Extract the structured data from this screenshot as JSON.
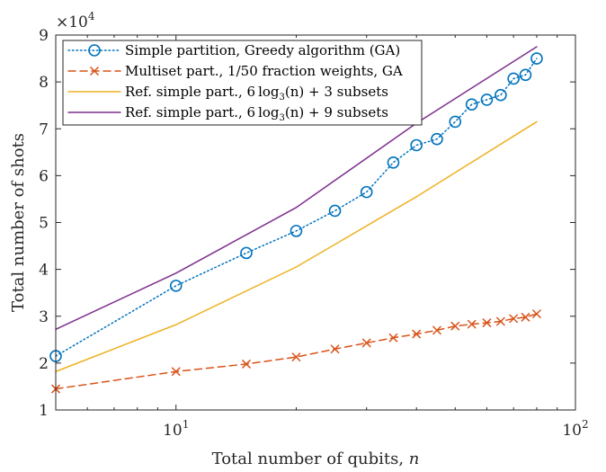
{
  "chart_data": {
    "type": "line",
    "xscale": "log",
    "xlim": [
      5,
      100
    ],
    "ylim": [
      1,
      9
    ],
    "y_multiplier_label": "×10",
    "y_multiplier_exponent": "4",
    "xlabel": "Total number of qubits, ",
    "xlabel_var": "n",
    "ylabel": "Total number of shots",
    "x_ticks": [
      {
        "value": 10,
        "base": "10",
        "exp": "1"
      },
      {
        "value": 100,
        "base": "10",
        "exp": "2"
      }
    ],
    "y_ticks": [
      "1",
      "2",
      "3",
      "4",
      "5",
      "6",
      "7",
      "8",
      "9"
    ],
    "series": [
      {
        "name": "Simple partition, Greedy algorithm (GA)",
        "color": "#0072BD",
        "style": "dotted",
        "marker": "circle",
        "x": [
          5,
          10,
          15,
          20,
          25,
          30,
          35,
          40,
          45,
          50,
          55,
          60,
          65,
          70,
          75,
          80
        ],
        "y": [
          2.15,
          3.65,
          4.35,
          4.82,
          5.25,
          5.65,
          6.28,
          6.65,
          6.78,
          7.15,
          7.52,
          7.62,
          7.72,
          8.07,
          8.15,
          8.5
        ]
      },
      {
        "name": "Multiset part., 1/50 fraction weights, GA",
        "color": "#D95319",
        "style": "dashed",
        "marker": "x",
        "x": [
          5,
          10,
          15,
          20,
          25,
          30,
          35,
          40,
          45,
          50,
          55,
          60,
          65,
          70,
          75,
          80
        ],
        "y": [
          1.45,
          1.82,
          1.98,
          2.13,
          2.3,
          2.43,
          2.54,
          2.62,
          2.7,
          2.79,
          2.83,
          2.86,
          2.89,
          2.95,
          2.98,
          3.05
        ]
      },
      {
        "name": "Ref. simple part., 6 log3(n) + 3 subsets",
        "color": "#EDB120",
        "style": "solid",
        "marker": "none",
        "x": [
          5,
          10,
          20,
          40,
          80
        ],
        "y": [
          1.82,
          2.82,
          4.05,
          5.55,
          7.15
        ]
      },
      {
        "name": "Ref. simple part., 6 log3(n) + 9 subsets",
        "color": "#7E2F8E",
        "style": "solid",
        "marker": "none",
        "x": [
          5,
          10,
          20,
          40,
          80
        ],
        "y": [
          2.72,
          3.92,
          5.32,
          7.12,
          8.75
        ]
      }
    ],
    "legend": {
      "position": "top-left",
      "labels": [
        {
          "text": "Simple partition, Greedy algorithm (GA)"
        },
        {
          "text": "Multiset part., 1/50 fraction weights, GA"
        },
        {
          "pre": "Ref. simple part., ",
          "six": "6",
          "log": "log",
          "sub": "3",
          "arg": "(n) + 3 subsets"
        },
        {
          "pre": "Ref. simple part., ",
          "six": "6",
          "log": "log",
          "sub": "3",
          "arg": "(n) + 9 subsets"
        }
      ]
    }
  }
}
